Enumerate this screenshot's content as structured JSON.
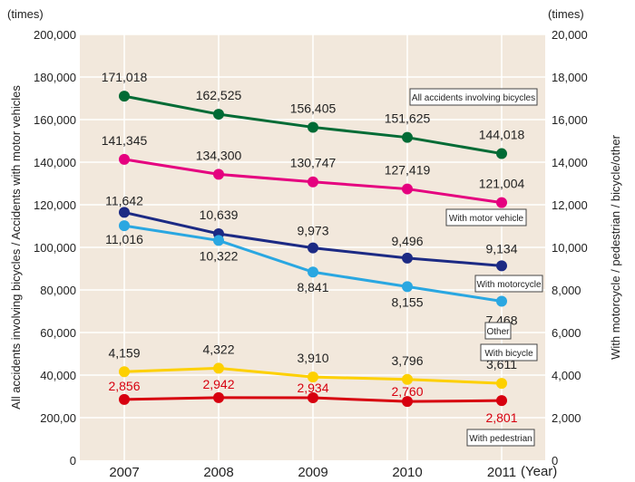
{
  "chart_data": {
    "type": "line",
    "title": "",
    "xlabel": "(Year)",
    "ylabel_left": "All accidents involving bicycles / Accidents with motor vehicles",
    "ylabel_right": "With motorcycle / pedestrian / bicycle/other",
    "unit_left": "(times)",
    "unit_right": "(times)",
    "categories": [
      "2007",
      "2008",
      "2009",
      "2010",
      "2011"
    ],
    "ylim_left": [
      0,
      200000
    ],
    "ylim_right": [
      0,
      20000
    ],
    "yticks_left": [
      "0",
      "200,00",
      "40,000",
      "60,000",
      "80,000",
      "100,000",
      "120,000",
      "140,000",
      "160,000",
      "180,000",
      "200,000"
    ],
    "yticks_right": [
      "0",
      "2,000",
      "4,000",
      "6,000",
      "8,000",
      "10,000",
      "12,000",
      "14,000",
      "16,000",
      "18,000",
      "20,000"
    ],
    "grid": true,
    "background": "#f2e8dc",
    "series": [
      {
        "name": "All accidents involving bicycles",
        "axis": "left",
        "color": "#006b35",
        "values": [
          171018,
          162525,
          156405,
          151625,
          144018
        ],
        "labels": [
          "171,018",
          "162,525",
          "156,405",
          "151,625",
          "144,018"
        ],
        "label_color": "#222222"
      },
      {
        "name": "With motor vehicle",
        "axis": "left",
        "color": "#e5007f",
        "values": [
          141345,
          134300,
          130747,
          127419,
          121004
        ],
        "labels": [
          "141,345",
          "134,300",
          "130,747",
          "127,419",
          "121,004"
        ],
        "label_color": "#222222"
      },
      {
        "name": "With motorcycle",
        "axis": "right",
        "color": "#1c2a84",
        "values": [
          11642,
          10639,
          9973,
          9496,
          9134
        ],
        "labels": [
          "11,642",
          "10,639",
          "9,973",
          "9,496",
          "9,134"
        ],
        "label_color": "#222222"
      },
      {
        "name": "Other",
        "axis": "right",
        "color": "#2aa7e1",
        "values": [
          11016,
          10322,
          8841,
          8155,
          7468
        ],
        "labels": [
          "11,016",
          "10,322",
          "8,841",
          "8,155",
          "7,468"
        ],
        "label_color": "#222222"
      },
      {
        "name": "With bicycle",
        "axis": "right",
        "color": "#fdd000",
        "values": [
          4159,
          4322,
          3910,
          3796,
          3611
        ],
        "labels": [
          "4,159",
          "4,322",
          "3,910",
          "3,796",
          "3,611"
        ],
        "label_color": "#222222"
      },
      {
        "name": "With pedestrian",
        "axis": "right",
        "color": "#d7000f",
        "values": [
          2856,
          2942,
          2934,
          2760,
          2801
        ],
        "labels": [
          "2,856",
          "2,942",
          "2,934",
          "2,760",
          "2,801"
        ],
        "label_color": "#d7000f"
      }
    ],
    "legend_placement": "inline-right"
  }
}
